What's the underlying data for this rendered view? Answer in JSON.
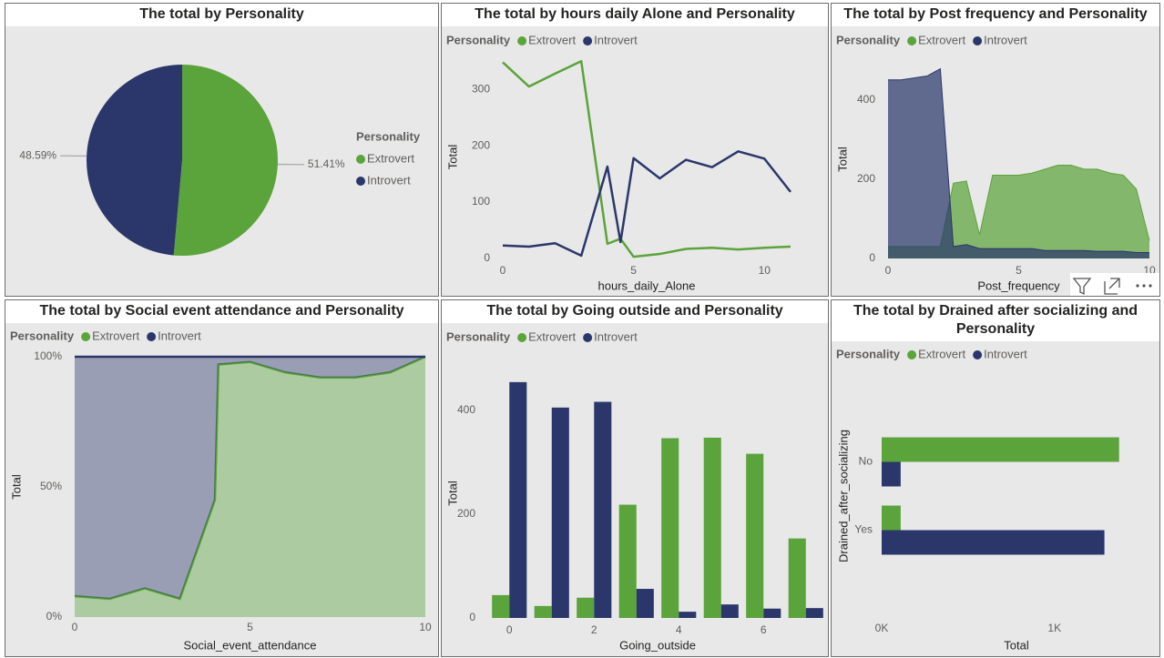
{
  "chart_data": [
    {
      "type": "pie",
      "title": "The total by Personality",
      "legend_title": "Personality",
      "categories": [
        "Extrovert",
        "Introvert"
      ],
      "values": [
        51.41,
        48.59
      ],
      "value_labels": [
        "51.41%",
        "48.59%"
      ],
      "colors": [
        "#5ba33b",
        "#2b376b"
      ]
    },
    {
      "type": "line",
      "title": "The total by hours daily Alone and Personality",
      "legend_title": "Personality",
      "xlabel": "hours_daily_Alone",
      "ylabel": "Total",
      "x": [
        0,
        1,
        2,
        3,
        4,
        4.5,
        5,
        6,
        7,
        8,
        9,
        10,
        11
      ],
      "series": [
        {
          "name": "Extrovert",
          "color": "#5ba33b",
          "values": [
            348,
            305,
            328,
            350,
            26,
            35,
            3,
            8,
            17,
            19,
            16,
            19,
            21
          ]
        },
        {
          "name": "Introvert",
          "color": "#2b376b",
          "values": [
            23,
            21,
            27,
            5,
            163,
            29,
            178,
            142,
            175,
            162,
            190,
            177,
            118
          ]
        }
      ],
      "xlim": [
        0,
        11
      ],
      "ylim": [
        0,
        360
      ],
      "xticks": [
        0,
        5,
        10
      ],
      "yticks": [
        0,
        100,
        200,
        300
      ]
    },
    {
      "type": "area",
      "title": "The total by Post frequency and Personality",
      "legend_title": "Personality",
      "xlabel": "Post_frequency",
      "ylabel": "Total",
      "x": [
        0,
        0.5,
        1,
        1.5,
        2,
        2.5,
        3,
        3.5,
        4,
        4.5,
        5,
        5.5,
        6,
        6.5,
        7,
        7.5,
        8,
        8.5,
        9,
        9.5,
        10
      ],
      "series": [
        {
          "name": "Extrovert",
          "color": "#5ba33b",
          "values": [
            30,
            30,
            30,
            30,
            30,
            190,
            195,
            60,
            210,
            210,
            210,
            215,
            225,
            235,
            235,
            225,
            225,
            215,
            210,
            175,
            45
          ]
        },
        {
          "name": "Introvert",
          "color": "#2b376b",
          "values": [
            450,
            450,
            455,
            460,
            478,
            30,
            35,
            25,
            25,
            25,
            25,
            25,
            20,
            20,
            20,
            20,
            18,
            18,
            18,
            15,
            15
          ]
        }
      ],
      "xlim": [
        0,
        10
      ],
      "ylim": [
        0,
        500
      ],
      "xticks": [
        0,
        5,
        10
      ],
      "yticks": [
        0,
        200,
        400
      ]
    },
    {
      "type": "area",
      "stacked": true,
      "title": "The total by Social event attendance and Personality",
      "legend_title": "Personality",
      "xlabel": "Social_event_attendance",
      "ylabel": "Total",
      "x": [
        0,
        1,
        2,
        3,
        4,
        4.1,
        5,
        6,
        7,
        8,
        9,
        10
      ],
      "series": [
        {
          "name": "Extrovert",
          "color": "#5ba33b",
          "values": [
            8,
            7,
            11,
            7,
            45,
            97,
            98,
            94,
            92,
            92,
            94,
            100
          ]
        },
        {
          "name": "Introvert",
          "color": "#2b376b",
          "values": [
            92,
            93,
            89,
            93,
            55,
            3,
            2,
            6,
            8,
            8,
            6,
            0
          ]
        }
      ],
      "xlim": [
        0,
        10
      ],
      "ylim": [
        0,
        100
      ],
      "xticks": [
        0,
        5,
        10
      ],
      "yticks": [
        {
          "value": 0,
          "label": "0%"
        },
        {
          "value": 50,
          "label": "50%"
        },
        {
          "value": 100,
          "label": "100%"
        }
      ]
    },
    {
      "type": "bar",
      "title": "The total by Going outside and Personality",
      "legend_title": "Personality",
      "xlabel": "Going_outside",
      "ylabel": "Total",
      "categories": [
        0,
        null,
        2,
        null,
        4,
        null,
        6,
        null
      ],
      "series": [
        {
          "name": "Extrovert",
          "color": "#5ba33b",
          "values": [
            44,
            23,
            39,
            218,
            346,
            347,
            316,
            153
          ]
        },
        {
          "name": "Introvert",
          "color": "#2b376b",
          "values": [
            454,
            405,
            416,
            56,
            12,
            26,
            18,
            19
          ]
        }
      ],
      "ylim": [
        0,
        480
      ],
      "yticks": [
        0,
        200,
        400
      ]
    },
    {
      "type": "bar",
      "orientation": "horizontal",
      "title": "The total by Drained after socializing and Personality",
      "legend_title": "Personality",
      "xlabel": "Total",
      "ylabel": "Drained_after_socializing",
      "categories": [
        "No",
        "Yes"
      ],
      "series": [
        {
          "name": "Extrovert",
          "color": "#5ba33b",
          "values": [
            1374,
            110
          ]
        },
        {
          "name": "Introvert",
          "color": "#2b376b",
          "values": [
            110,
            1289
          ]
        }
      ],
      "xlim": [
        0,
        1560
      ],
      "xticks": [
        {
          "value": 0,
          "label": "0K"
        },
        {
          "value": 1000,
          "label": "1K"
        }
      ]
    }
  ]
}
